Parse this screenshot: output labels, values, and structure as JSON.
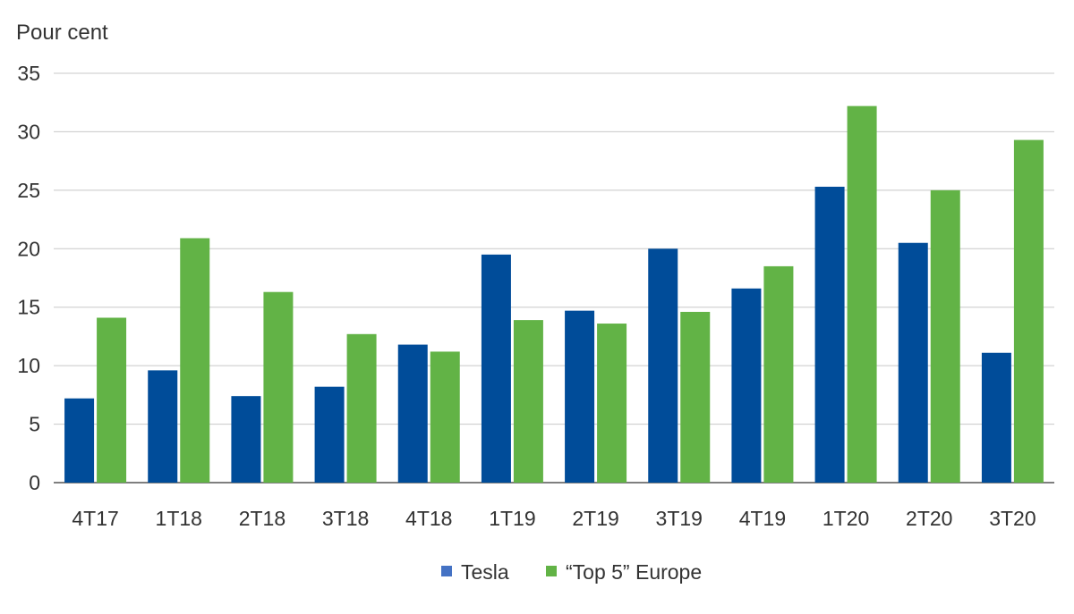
{
  "chart_data": {
    "type": "bar",
    "unit_label": "Pour cent",
    "categories": [
      "4T17",
      "1T18",
      "2T18",
      "3T18",
      "4T18",
      "1T19",
      "2T19",
      "3T19",
      "4T19",
      "1T20",
      "2T20",
      "3T20"
    ],
    "series": [
      {
        "name": "Tesla",
        "color": "#004c99",
        "legend_color": "#4472c4",
        "values": [
          7.2,
          9.6,
          7.4,
          8.2,
          11.8,
          19.5,
          14.7,
          20.0,
          16.6,
          25.3,
          20.5,
          11.1
        ]
      },
      {
        "name": "“Top 5” Europe",
        "color": "#62b346",
        "legend_color": "#62b346",
        "values": [
          14.1,
          20.9,
          16.3,
          12.7,
          11.2,
          13.9,
          13.6,
          14.6,
          18.5,
          32.2,
          25.0,
          29.3
        ]
      }
    ],
    "ylim": [
      0,
      35
    ],
    "yticks": [
      0,
      5,
      10,
      15,
      20,
      25,
      30,
      35
    ],
    "grid": true,
    "legend_position": "bottom"
  }
}
